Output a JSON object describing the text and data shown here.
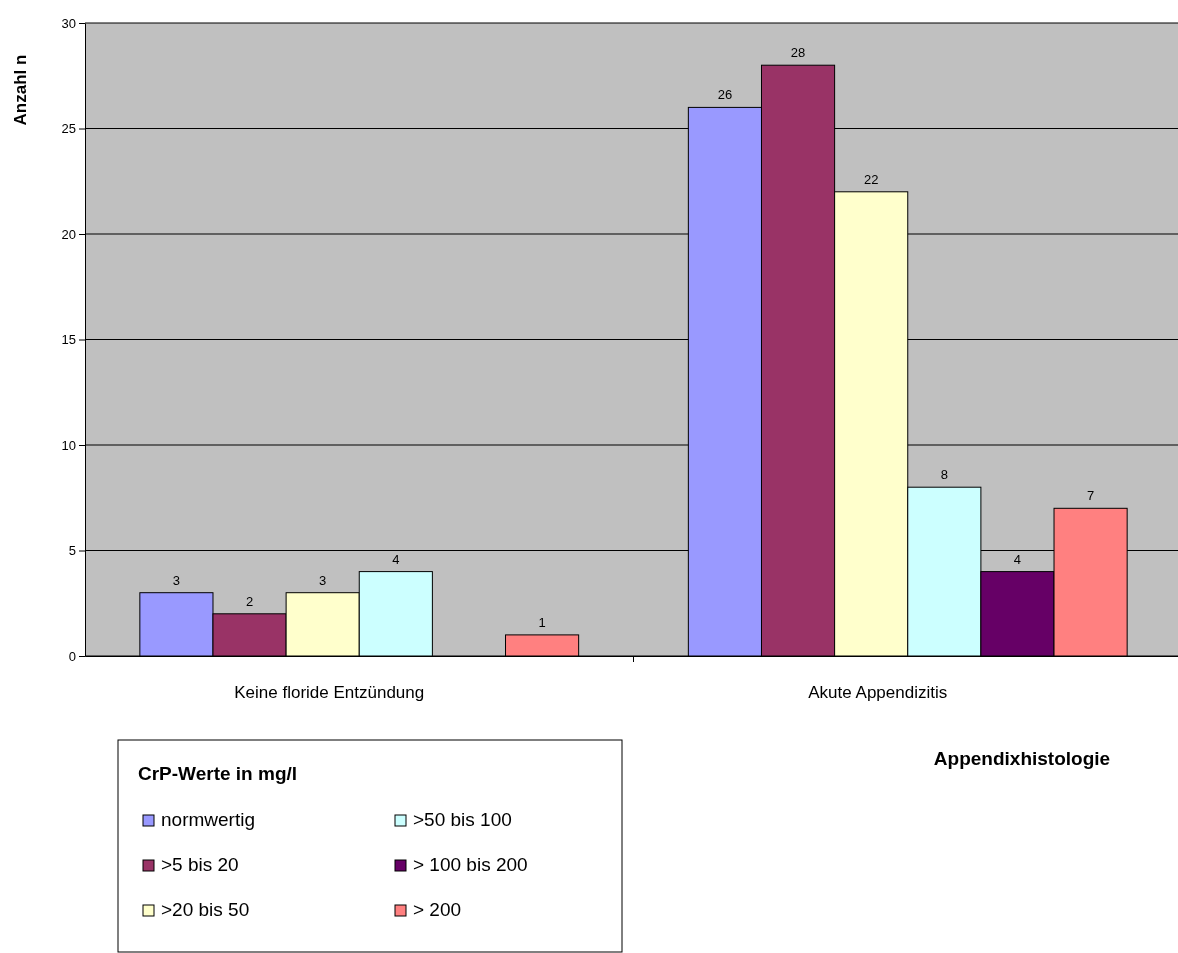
{
  "chart_data": {
    "type": "bar",
    "ylabel": "Anzahl n",
    "xlabel": "Appendixhistologie",
    "legend_title": "CrP-Werte in mg/l",
    "categories": [
      "Keine floride Entzündung",
      "Akute Appendizitis"
    ],
    "series": [
      {
        "name": "normwertig",
        "color": "#9999ff",
        "values": [
          3,
          26
        ]
      },
      {
        "name": ">5 bis 20",
        "color": "#993366",
        "values": [
          2,
          28
        ]
      },
      {
        "name": ">20 bis 50",
        "color": "#ffffcc",
        "values": [
          3,
          22
        ]
      },
      {
        "name": ">50 bis 100",
        "color": "#ccffff",
        "values": [
          4,
          8
        ]
      },
      {
        "name": "> 100 bis 200",
        "color": "#660066",
        "values": [
          null,
          4
        ]
      },
      {
        "name": "> 200",
        "color": "#ff8080",
        "values": [
          1,
          7
        ]
      }
    ],
    "ylim": [
      0,
      30
    ],
    "yticks": [
      0,
      5,
      10,
      15,
      20,
      25,
      30
    ],
    "grid": "y",
    "legend": "bottom left",
    "data_labels": true
  }
}
